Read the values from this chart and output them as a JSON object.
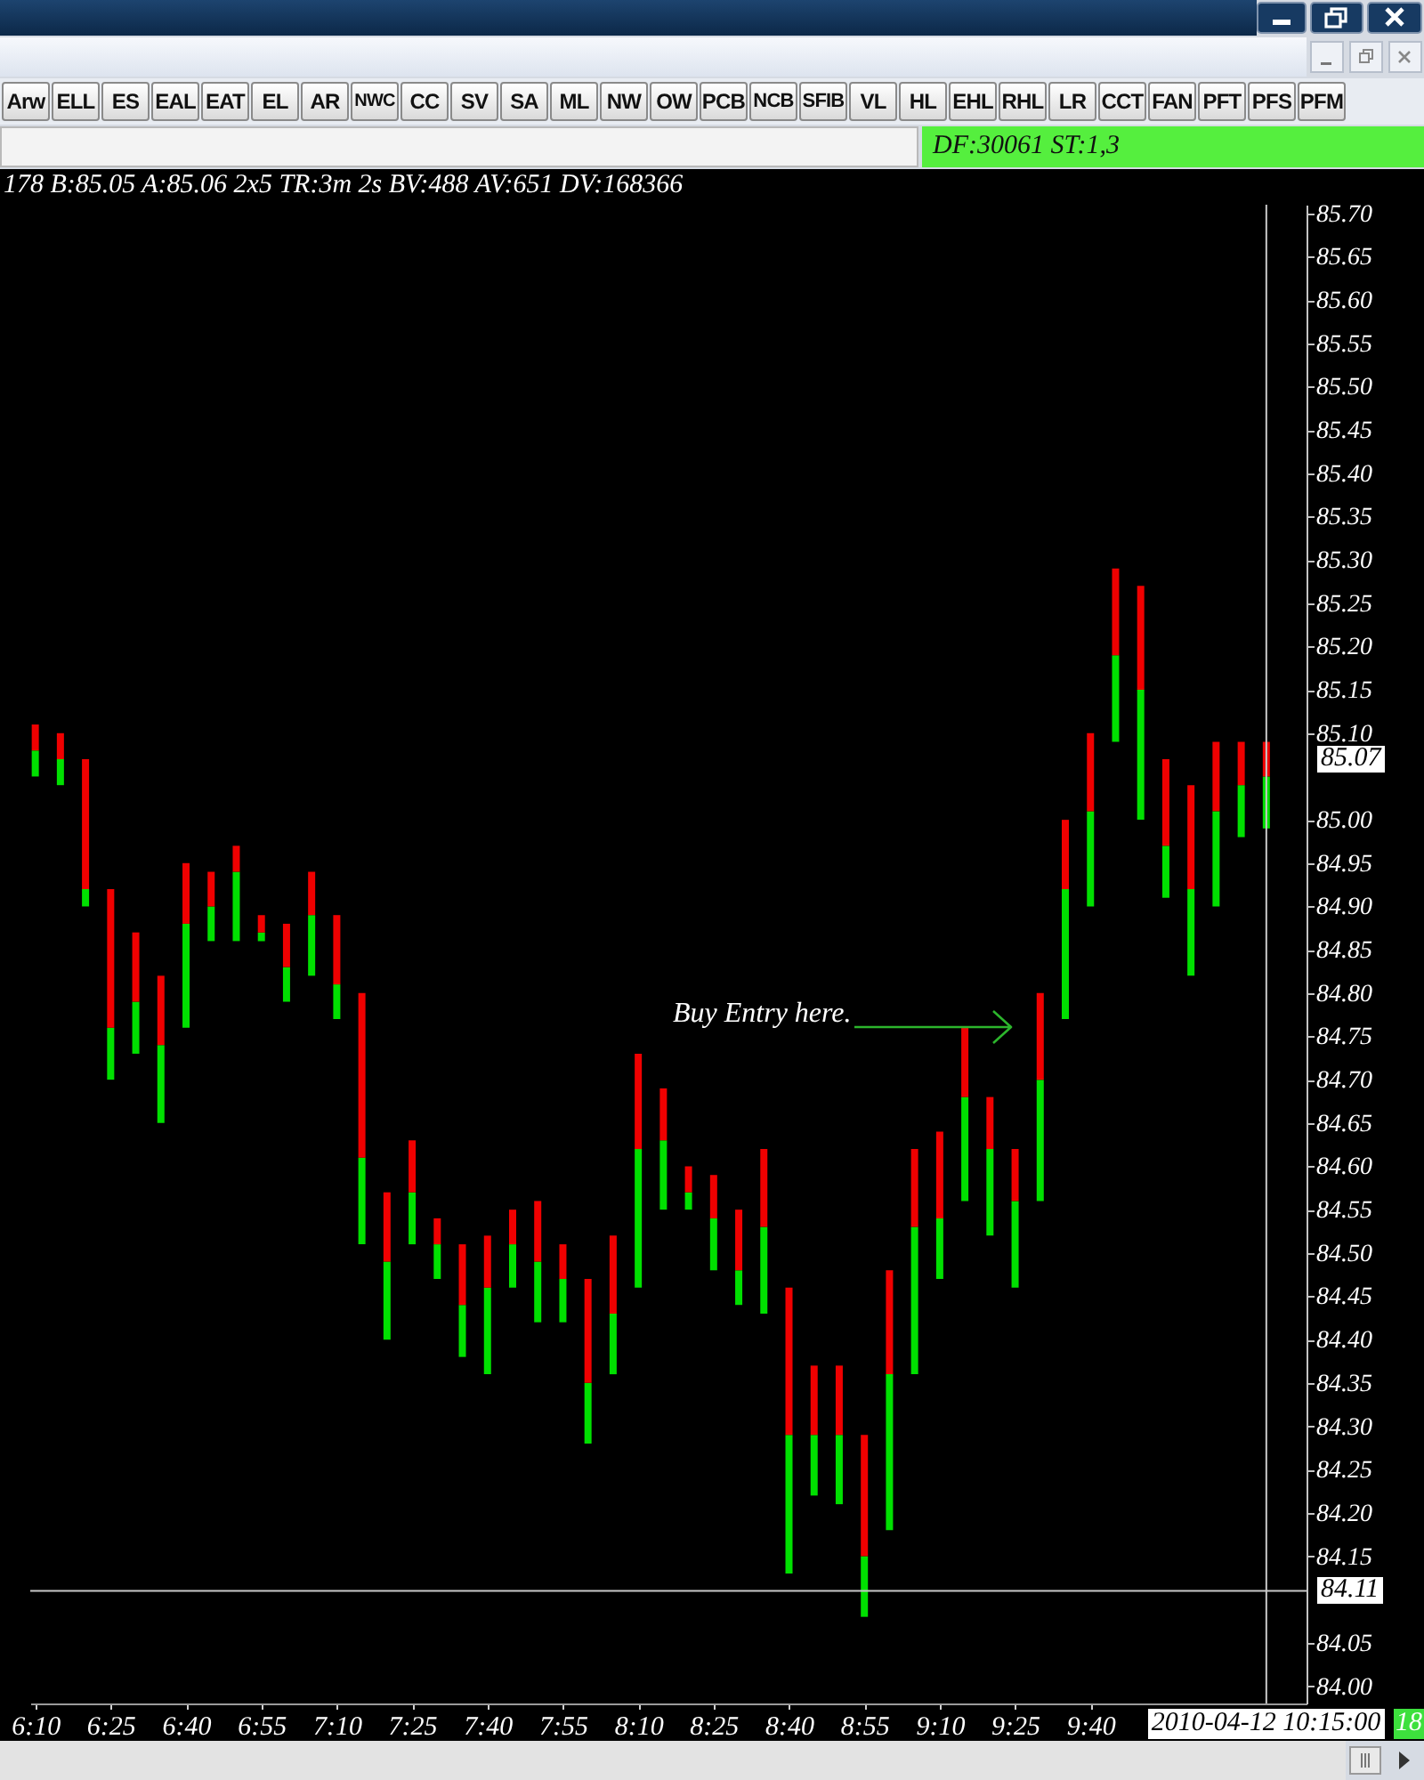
{
  "chart_data": {
    "type": "bar",
    "title": "178 B:85.05 A:85.06 2x5 TR:3m 2s BV:488 AV:651 DV:168366",
    "x": [
      6.1667,
      6.25,
      6.3333,
      6.4167,
      6.5,
      6.5833,
      6.6667,
      6.75,
      6.8333,
      6.9167,
      7,
      7.0833,
      7.1667,
      7.25,
      7.3333,
      7.4167,
      7.5,
      7.5833,
      7.6667,
      7.75,
      7.8333,
      7.9167,
      8,
      8.0833,
      8.1667,
      8.25,
      8.3333,
      8.4167,
      8.5,
      8.5833,
      8.6667,
      8.75,
      8.8333,
      8.9167,
      9,
      9.0833,
      9.1667,
      9.25,
      9.3333,
      9.4167,
      9.5,
      9.5833,
      9.6667,
      9.75,
      9.8333,
      9.9167,
      10,
      10.0833,
      10.1667,
      10.25
    ],
    "series": [
      {
        "color": "#00e000",
        "base": [
          85.05,
          85.04,
          84.9,
          84.7,
          84.73,
          84.65,
          84.76,
          84.86,
          84.86,
          84.86,
          84.79,
          84.82,
          84.77,
          84.51,
          84.4,
          84.51,
          84.47,
          84.38,
          84.36,
          84.46,
          84.42,
          84.42,
          84.28,
          84.36,
          84.46,
          84.55,
          84.55,
          84.48,
          84.44,
          84.43,
          84.13,
          84.22,
          84.21,
          84.08,
          84.18,
          84.36,
          84.47,
          84.56,
          84.52,
          84.46,
          84.56,
          84.77,
          84.9,
          85.09,
          85,
          84.91,
          84.82,
          84.9,
          84.98,
          84.99
        ],
        "values": [
          0.03,
          0.03,
          0.02,
          0.06,
          0.06,
          0.09,
          0.12,
          0.04,
          0.08,
          0.01,
          0.04,
          0.07,
          0.04,
          0.1,
          0.09,
          0.06,
          0.04,
          0.06,
          0.1,
          0.05,
          0.07,
          0.05,
          0.07,
          0.07,
          0.16,
          0.08,
          0.02,
          0.06,
          0.04,
          0.1,
          0.16,
          0.07,
          0.08,
          0.07,
          0.18,
          0.17,
          0.07,
          0.12,
          0.1,
          0.1,
          0.14,
          0.15,
          0.11,
          0.1,
          0.15,
          0.06,
          0.1,
          0.11,
          0.06,
          0.06
        ]
      },
      {
        "color": "#f00000",
        "base": [
          85.08,
          85.07,
          84.92,
          84.76,
          84.79,
          84.74,
          84.88,
          84.9,
          84.94,
          84.87,
          84.83,
          84.89,
          84.81,
          84.61,
          84.49,
          84.57,
          84.51,
          84.44,
          84.46,
          84.51,
          84.49,
          84.47,
          84.35,
          84.43,
          84.62,
          84.63,
          84.57,
          84.54,
          84.48,
          84.53,
          84.29,
          84.29,
          84.29,
          84.15,
          84.36,
          84.53,
          84.54,
          84.68,
          84.62,
          84.56,
          84.7,
          84.92,
          85.01,
          85.19,
          85.15,
          84.97,
          84.92,
          85.01,
          85.04,
          85.05
        ],
        "values": [
          0.03,
          0.03,
          0.15,
          0.16,
          0.08,
          0.08,
          0.07,
          0.04,
          0.03,
          0.02,
          0.05,
          0.05,
          0.08,
          0.19,
          0.08,
          0.06,
          0.03,
          0.07,
          0.06,
          0.04,
          0.07,
          0.04,
          0.12,
          0.09,
          0.11,
          0.06,
          0.03,
          0.05,
          0.07,
          0.09,
          0.17,
          0.08,
          0.08,
          0.14,
          0.12,
          0.09,
          0.1,
          0.08,
          0.06,
          0.06,
          0.1,
          0.08,
          0.09,
          0.1,
          0.12,
          0.1,
          0.12,
          0.08,
          0.05,
          0.04
        ]
      }
    ],
    "xlim": [
      6.15,
      10.3833
    ],
    "xticks": [
      {
        "value": 6.1667,
        "label": "6:10"
      },
      {
        "value": 6.4167,
        "label": "6:25"
      },
      {
        "value": 6.6667,
        "label": "6:40"
      },
      {
        "value": 6.9167,
        "label": "6:55"
      },
      {
        "value": 7.1667,
        "label": "7:10"
      },
      {
        "value": 7.4167,
        "label": "7:25"
      },
      {
        "value": 7.6667,
        "label": "7:40"
      },
      {
        "value": 7.9167,
        "label": "7:55"
      },
      {
        "value": 8.1667,
        "label": "8:10"
      },
      {
        "value": 8.4167,
        "label": "8:25"
      },
      {
        "value": 8.6667,
        "label": "8:40"
      },
      {
        "value": 8.9167,
        "label": "8:55"
      },
      {
        "value": 9.1667,
        "label": "9:10"
      },
      {
        "value": 9.4167,
        "label": "9:25"
      },
      {
        "value": 9.6667,
        "label": "9:40"
      }
    ],
    "ylim": [
      83.98,
      85.71
    ],
    "yticks": [
      {
        "value": 84,
        "label": "84.00"
      },
      84.05,
      84.15,
      {
        "value": 84.2,
        "label": "84.20"
      },
      84.25,
      {
        "value": 84.3,
        "label": "84.30"
      },
      84.35,
      {
        "value": 84.4,
        "label": "84.40"
      },
      84.45,
      {
        "value": 84.5,
        "label": "84.50"
      },
      84.55,
      {
        "value": 84.6,
        "label": "84.60"
      },
      84.65,
      {
        "value": 84.7,
        "label": "84.70"
      },
      84.75,
      {
        "value": 84.8,
        "label": "84.80"
      },
      84.85,
      {
        "value": 84.9,
        "label": "84.90"
      },
      84.95,
      {
        "value": 85,
        "label": "85.00"
      },
      {
        "value": 85.1,
        "label": "85.10"
      },
      85.15,
      {
        "value": 85.2,
        "label": "85.20"
      },
      85.25,
      {
        "value": 85.3,
        "label": "85.30"
      },
      85.35,
      {
        "value": 85.4,
        "label": "85.40"
      },
      85.45,
      {
        "value": 85.5,
        "label": "85.50"
      },
      85.55,
      {
        "value": 85.6,
        "label": "85.60"
      },
      85.65,
      {
        "value": 85.7,
        "label": "85.70"
      }
    ],
    "ref_lines": [
      {
        "axis": "y",
        "value": 84.11,
        "label": "84.11",
        "color": "#c8c8c8"
      },
      {
        "axis": "x",
        "value": 10.25,
        "label": "2010-04-12 10:15:00",
        "color": "#c8c8c8"
      }
    ],
    "annotations": [
      "Arw",
      "ELL",
      "ES",
      "EAL",
      "EAT",
      "EL",
      "AR",
      "NWC",
      "CC",
      "SV",
      "SA",
      "ML",
      "NW",
      "OW",
      "PCB",
      "NCB",
      "SFIB",
      "VL",
      "HL",
      "EHL",
      "RHL",
      "LR",
      "CCT",
      "FAN",
      "PFT",
      "PFS",
      "PFM",
      "DF:30061 ST:1,3",
      "Buy Entry here.",
      "85.07",
      "18"
    ]
  }
}
